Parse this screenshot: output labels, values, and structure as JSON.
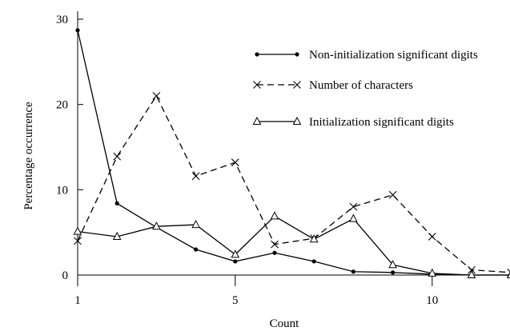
{
  "chart_data": {
    "type": "line",
    "xlabel": "Count",
    "ylabel": "Percentage occurrence",
    "xlim": [
      0.9,
      12.6
    ],
    "ylim": [
      0,
      30
    ],
    "x_ticks": [
      1,
      5,
      10
    ],
    "y_ticks": [
      0,
      10,
      20,
      30
    ],
    "grid": false,
    "legend_position": "top-right",
    "series": [
      {
        "name": "Non-initialization significant digits",
        "marker": "dot",
        "line_style": "solid",
        "x": [
          1,
          2,
          3,
          4,
          5,
          6,
          7,
          8,
          9,
          10,
          11,
          12
        ],
        "y": [
          28.7,
          8.4,
          5.6,
          3.0,
          1.6,
          2.6,
          1.6,
          0.4,
          0.3,
          0.1,
          0.0,
          0.0
        ]
      },
      {
        "name": "Number of characters",
        "marker": "cross",
        "line_style": "dashed",
        "x": [
          1,
          2,
          3,
          4,
          5,
          6,
          7,
          8,
          9,
          10,
          11,
          12
        ],
        "y": [
          4.0,
          13.9,
          21.0,
          11.6,
          13.2,
          3.6,
          4.3,
          8.0,
          9.4,
          4.5,
          0.6,
          0.3
        ]
      },
      {
        "name": "Initialization significant digits",
        "marker": "triangle",
        "line_style": "solid",
        "x": [
          1,
          2,
          3,
          4,
          5,
          6,
          7,
          8,
          9,
          10,
          11,
          12
        ],
        "y": [
          5.1,
          4.5,
          5.7,
          5.9,
          2.4,
          6.9,
          4.2,
          6.6,
          1.2,
          0.2,
          0.0,
          0.0
        ]
      }
    ]
  }
}
